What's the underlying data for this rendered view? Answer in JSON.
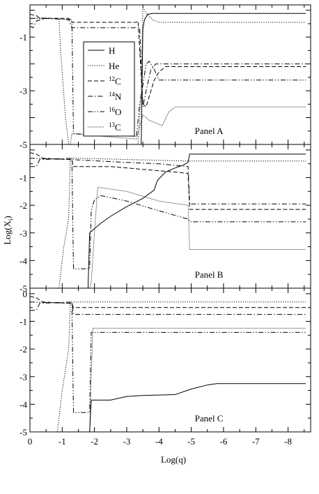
{
  "chart_data": {
    "type": "line",
    "xlabel": "Log(q)",
    "ylabel_main": "Log(X",
    "ylabel_sub": "i",
    "ylabel_close": ")",
    "xlim": [
      0,
      -8.7
    ],
    "x_ticks": [
      "0",
      "-1",
      "-2",
      "-3",
      "-4",
      "-5",
      "-6",
      "-7",
      "-8"
    ],
    "x_tick_values": [
      0,
      -1,
      -2,
      -3,
      -4,
      -5,
      -6,
      -7,
      -8
    ],
    "legend": {
      "placement": "panel-a-upper-left",
      "entries": [
        {
          "key": "H",
          "sup": "",
          "base": "H"
        },
        {
          "key": "He",
          "sup": "",
          "base": "He"
        },
        {
          "key": "C12",
          "sup": "12",
          "base": "C"
        },
        {
          "key": "N14",
          "sup": "14",
          "base": "N"
        },
        {
          "key": "O16",
          "sup": "16",
          "base": "O"
        },
        {
          "key": "C13",
          "sup": "13",
          "base": "C"
        }
      ]
    },
    "styles": {
      "H": "solid",
      "He": "dotted",
      "C12": "dashed",
      "N14": "dash-dot",
      "O16": "dash-dot-dot",
      "C13": "dense-dot"
    },
    "panels": [
      {
        "label": "Panel A",
        "ylim": [
          -5,
          0.2
        ],
        "y_ticks": [
          "-1",
          "-3",
          "-5"
        ],
        "y_tick_values": [
          -1,
          -3,
          -5
        ],
        "series": [
          {
            "key": "H",
            "points": [
              [
                -3.45,
                -5
              ],
              [
                -3.5,
                -0.7
              ],
              [
                -3.55,
                -0.35
              ],
              [
                -3.65,
                -0.15
              ],
              [
                -3.8,
                -0.12
              ],
              [
                -8.55,
                -0.12
              ]
            ]
          },
          {
            "key": "He",
            "points": [
              [
                0,
                -0.3
              ],
              [
                -0.4,
                -0.28
              ],
              [
                -0.9,
                -0.32
              ],
              [
                -0.95,
                -1.5
              ],
              [
                -1.1,
                -4
              ],
              [
                -1.2,
                -5
              ],
              [
                -3.35,
                -5
              ],
              [
                -3.45,
                -3
              ],
              [
                -3.5,
                0.1
              ],
              [
                -3.6,
                -0.1
              ],
              [
                -3.8,
                -0.35
              ],
              [
                -4.0,
                -0.45
              ],
              [
                -8.55,
                -0.45
              ]
            ]
          },
          {
            "key": "C12",
            "points": [
              [
                0,
                -0.15
              ],
              [
                -0.2,
                -0.2
              ],
              [
                -0.3,
                -0.3
              ],
              [
                -0.5,
                -0.3
              ],
              [
                -1.2,
                -0.3
              ],
              [
                -1.3,
                -0.45
              ],
              [
                -3.3,
                -0.45
              ],
              [
                -3.35,
                -0.4
              ],
              [
                -3.5,
                -3.5
              ],
              [
                -3.6,
                -3.6
              ],
              [
                -3.75,
                -3.0
              ],
              [
                -3.85,
                -2.6
              ],
              [
                -4.0,
                -2.3
              ],
              [
                -4.2,
                -2.1
              ],
              [
                -8.55,
                -2.1
              ]
            ]
          },
          {
            "key": "N14",
            "points": [
              [
                0,
                -0.6
              ],
              [
                -0.1,
                -0.65
              ],
              [
                -0.2,
                -0.4
              ],
              [
                -0.5,
                -0.3
              ],
              [
                -1.2,
                -0.35
              ],
              [
                -1.3,
                -0.65
              ],
              [
                -3.4,
                -0.65
              ],
              [
                -3.5,
                -3.6
              ],
              [
                -3.6,
                -3.0
              ],
              [
                -3.75,
                -2.2
              ],
              [
                -3.9,
                -2.0
              ],
              [
                -8.55,
                -2.0
              ]
            ]
          },
          {
            "key": "O16",
            "points": [
              [
                0,
                -0.3
              ],
              [
                -0.9,
                -0.32
              ],
              [
                -1.3,
                -0.35
              ],
              [
                -1.35,
                -4.6
              ],
              [
                -3.3,
                -4.7
              ],
              [
                -3.4,
                -3.5
              ],
              [
                -3.5,
                -2.8
              ],
              [
                -3.6,
                -2.0
              ],
              [
                -3.7,
                -1.9
              ],
              [
                -3.85,
                -2.2
              ],
              [
                -4.0,
                -2.6
              ],
              [
                -8.55,
                -2.6
              ]
            ]
          },
          {
            "key": "C13",
            "points": [
              [
                -1.25,
                -5
              ],
              [
                -1.3,
                -4.6
              ],
              [
                -3.3,
                -4.8
              ],
              [
                -3.5,
                -3.9
              ],
              [
                -3.7,
                -4.1
              ],
              [
                -3.9,
                -4.2
              ],
              [
                -4.1,
                -4.3
              ],
              [
                -4.3,
                -3.8
              ],
              [
                -4.5,
                -3.6
              ],
              [
                -8.55,
                -3.6
              ]
            ]
          }
        ]
      },
      {
        "label": "Panel B",
        "ylim": [
          -5,
          0.2
        ],
        "y_ticks": [
          "-1",
          "-2",
          "-3",
          "-4",
          "-5"
        ],
        "y_tick_values": [
          -1,
          -2,
          -3,
          -4,
          -5
        ],
        "series": [
          {
            "key": "H",
            "points": [
              [
                -1.8,
                -5
              ],
              [
                -1.85,
                -3.0
              ],
              [
                -1.95,
                -2.9
              ],
              [
                -2.2,
                -2.65
              ],
              [
                -2.5,
                -2.4
              ],
              [
                -3.0,
                -2.05
              ],
              [
                -3.5,
                -1.75
              ],
              [
                -3.85,
                -1.45
              ],
              [
                -3.95,
                -1.1
              ],
              [
                -4.2,
                -0.8
              ],
              [
                -4.5,
                -0.65
              ],
              [
                -4.75,
                -0.55
              ],
              [
                -4.9,
                -0.45
              ],
              [
                -4.95,
                -0.15
              ],
              [
                -5.0,
                -0.15
              ],
              [
                -8.55,
                -0.15
              ]
            ]
          },
          {
            "key": "He",
            "points": [
              [
                -0.9,
                -5
              ],
              [
                -1.05,
                -3.5
              ],
              [
                -1.2,
                -2.5
              ],
              [
                -1.25,
                -0.3
              ],
              [
                -1.5,
                -0.3
              ],
              [
                -4.9,
                -0.4
              ],
              [
                -8.55,
                -0.4
              ]
            ]
          },
          {
            "key": "C12",
            "points": [
              [
                0,
                -0.1
              ],
              [
                -0.2,
                -0.15
              ],
              [
                -0.4,
                -0.3
              ],
              [
                -1.3,
                -0.35
              ],
              [
                -1.35,
                -0.6
              ],
              [
                -2.5,
                -0.6
              ],
              [
                -3.5,
                -0.7
              ],
              [
                -4.5,
                -0.8
              ],
              [
                -4.9,
                -0.85
              ],
              [
                -4.95,
                -2.15
              ],
              [
                -8.55,
                -2.15
              ]
            ]
          },
          {
            "key": "N14",
            "points": [
              [
                0,
                -0.6
              ],
              [
                -0.2,
                -0.6
              ],
              [
                -0.3,
                -0.35
              ],
              [
                -1.3,
                -0.3
              ],
              [
                -1.35,
                -0.35
              ],
              [
                -3.0,
                -0.45
              ],
              [
                -4.0,
                -0.5
              ],
              [
                -4.9,
                -0.6
              ],
              [
                -4.95,
                -1.95
              ],
              [
                -8.55,
                -1.95
              ]
            ]
          },
          {
            "key": "O16",
            "points": [
              [
                0,
                -0.3
              ],
              [
                -1.3,
                -0.35
              ],
              [
                -1.35,
                -4.3
              ],
              [
                -1.85,
                -4.3
              ],
              [
                -1.9,
                -2.2
              ],
              [
                -2.0,
                -1.8
              ],
              [
                -2.2,
                -1.65
              ],
              [
                -3.0,
                -1.85
              ],
              [
                -4.0,
                -2.2
              ],
              [
                -4.9,
                -2.5
              ],
              [
                -4.95,
                -2.6
              ],
              [
                -8.55,
                -2.6
              ]
            ]
          },
          {
            "key": "C13",
            "points": [
              [
                -1.85,
                -5
              ],
              [
                -1.9,
                -4.8
              ],
              [
                -2.0,
                -3.0
              ],
              [
                -2.1,
                -1.35
              ],
              [
                -3.0,
                -1.5
              ],
              [
                -4.0,
                -1.85
              ],
              [
                -4.9,
                -2.0
              ],
              [
                -4.95,
                -3.6
              ],
              [
                -8.55,
                -3.6
              ]
            ]
          }
        ]
      },
      {
        "label": "Panel C",
        "ylim": [
          -5,
          0.2
        ],
        "y_ticks": [
          "0",
          "-1",
          "-2",
          "-3",
          "-4",
          "-5"
        ],
        "y_tick_values": [
          0,
          -1,
          -2,
          -3,
          -4,
          -5
        ],
        "series": [
          {
            "key": "H",
            "points": [
              [
                -1.85,
                -5
              ],
              [
                -1.9,
                -3.85
              ],
              [
                -2.5,
                -3.85
              ],
              [
                -3.0,
                -3.72
              ],
              [
                -3.5,
                -3.68
              ],
              [
                -4.5,
                -3.65
              ],
              [
                -5.0,
                -3.45
              ],
              [
                -5.5,
                -3.3
              ],
              [
                -5.8,
                -3.25
              ],
              [
                -8.55,
                -3.25
              ]
            ]
          },
          {
            "key": "He",
            "points": [
              [
                -0.85,
                -5
              ],
              [
                -1.0,
                -3.5
              ],
              [
                -1.2,
                -2.0
              ],
              [
                -1.25,
                -0.3
              ],
              [
                -1.5,
                -0.3
              ],
              [
                -8.55,
                -0.3
              ]
            ]
          },
          {
            "key": "C12",
            "points": [
              [
                0,
                -0.1
              ],
              [
                -0.2,
                -0.15
              ],
              [
                -0.4,
                -0.3
              ],
              [
                -1.3,
                -0.35
              ],
              [
                -1.35,
                -0.5
              ],
              [
                -8.55,
                -0.5
              ]
            ]
          },
          {
            "key": "N14",
            "points": [
              [
                0,
                -0.6
              ],
              [
                -0.2,
                -0.6
              ],
              [
                -0.3,
                -0.35
              ],
              [
                -1.3,
                -0.3
              ],
              [
                -1.35,
                -0.75
              ],
              [
                -8.55,
                -0.75
              ]
            ]
          },
          {
            "key": "O16",
            "points": [
              [
                0,
                -0.3
              ],
              [
                -1.3,
                -0.35
              ],
              [
                -1.35,
                -4.3
              ],
              [
                -1.85,
                -4.3
              ],
              [
                -1.9,
                -1.4
              ],
              [
                -8.55,
                -1.4
              ]
            ]
          },
          {
            "key": "C13",
            "points": [
              [
                -1.85,
                -5
              ],
              [
                -1.9,
                -3.0
              ],
              [
                -1.95,
                -1.25
              ],
              [
                -8.55,
                -1.25
              ]
            ]
          }
        ]
      }
    ]
  }
}
